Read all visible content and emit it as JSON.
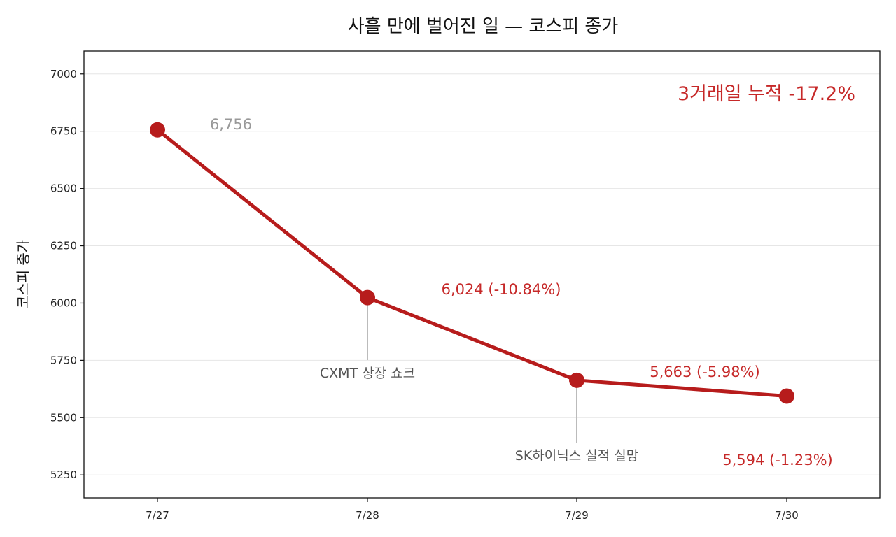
{
  "chart_data": {
    "type": "line",
    "title": "사흘 만에 벌어진 일 — 코스피 종가",
    "xlabel": "",
    "ylabel": "코스피 종가",
    "categories": [
      "7/27",
      "7/28",
      "7/29",
      "7/30"
    ],
    "series": [
      {
        "values": [
          6756,
          6024,
          5663,
          5594
        ],
        "color": "#b71c1c"
      }
    ],
    "data_labels": [
      "6,756",
      "6,024  (-10.84%)",
      "5,663  (-5.98%)",
      "5,594  (-1.23%)"
    ],
    "data_label_colors": [
      "#999999",
      "#c62828",
      "#c62828",
      "#c62828"
    ],
    "annotations": [
      {
        "text": "CXMT 상장 쇼크",
        "category_index": 1
      },
      {
        "text": "SK하이닉스 실적 실망",
        "category_index": 2
      }
    ],
    "callout": {
      "text": "3거래일 누적 -17.2%",
      "color": "#c62828"
    },
    "yticks": [
      5250,
      5500,
      5750,
      6000,
      6250,
      6500,
      6750,
      7000
    ],
    "ylim": [
      5150,
      7100
    ],
    "grid": "horizontal",
    "legend": "none"
  }
}
